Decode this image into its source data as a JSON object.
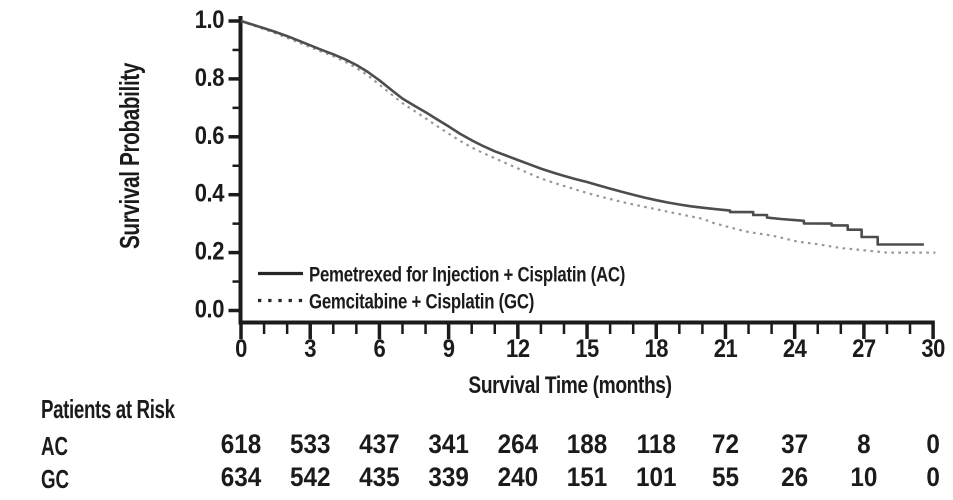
{
  "figure": {
    "ylabel": "Survival Probability",
    "xlabel": "Survival Time (months)",
    "y_ticks": [
      "1.0",
      "0.8",
      "0.6",
      "0.4",
      "0.2",
      "0.0"
    ],
    "x_ticks": [
      "0",
      "3",
      "6",
      "9",
      "12",
      "15",
      "18",
      "21",
      "24",
      "27",
      "30"
    ],
    "legend": [
      {
        "key": "ac",
        "label": "Pemetrexed for Injection + Cisplatin (AC)",
        "style": "solid"
      },
      {
        "key": "gc",
        "label": "Gemcitabine + Cisplatin (GC)",
        "style": "dotted"
      }
    ],
    "axis_color": "#1b1b1b",
    "legend_sample_color": "#262626"
  },
  "risk_table": {
    "title": "Patients at Risk",
    "rows": [
      {
        "label": "AC",
        "counts": [
          "618",
          "533",
          "437",
          "341",
          "264",
          "188",
          "118",
          "72",
          "37",
          "8",
          "0"
        ]
      },
      {
        "label": "GC",
        "counts": [
          "634",
          "542",
          "435",
          "339",
          "240",
          "151",
          "101",
          "55",
          "26",
          "10",
          "0"
        ]
      }
    ]
  },
  "chart_data": {
    "type": "line",
    "subtype": "kaplan-meier",
    "title": "",
    "xlabel": "Survival Time (months)",
    "ylabel": "Survival Probability",
    "xlim": [
      0,
      30
    ],
    "ylim": [
      0.0,
      1.0
    ],
    "x_tick_values": [
      0,
      3,
      6,
      9,
      12,
      15,
      18,
      21,
      24,
      27,
      30
    ],
    "x_minor_tick_step": 1,
    "y_tick_values": [
      0.0,
      0.2,
      0.4,
      0.6,
      0.8,
      1.0
    ],
    "y_minor_tick_values": [
      0.1,
      0.3,
      0.5,
      0.7,
      0.9
    ],
    "grid": false,
    "legend_position": "inside lower-left",
    "series": [
      {
        "name": "Pemetrexed for Injection + Cisplatin (AC)",
        "key": "ac",
        "style": "solid",
        "color": "#4d4d4d",
        "width": 2.6,
        "points": [
          [
            0,
            1.0
          ],
          [
            0.4,
            0.99
          ],
          [
            1,
            0.975
          ],
          [
            1.5,
            0.962
          ],
          [
            2,
            0.948
          ],
          [
            2.5,
            0.932
          ],
          [
            3,
            0.916
          ],
          [
            3.5,
            0.9
          ],
          [
            4,
            0.885
          ],
          [
            4.5,
            0.868
          ],
          [
            5,
            0.848
          ],
          [
            5.5,
            0.824
          ],
          [
            6,
            0.795
          ],
          [
            6.5,
            0.763
          ],
          [
            7,
            0.732
          ],
          [
            7.5,
            0.708
          ],
          [
            8,
            0.685
          ],
          [
            8.5,
            0.66
          ],
          [
            9,
            0.636
          ],
          [
            9.5,
            0.61
          ],
          [
            10,
            0.588
          ],
          [
            10.5,
            0.568
          ],
          [
            11,
            0.55
          ],
          [
            11.5,
            0.535
          ],
          [
            12,
            0.52
          ],
          [
            12.5,
            0.505
          ],
          [
            13,
            0.49
          ],
          [
            13.5,
            0.477
          ],
          [
            14,
            0.465
          ],
          [
            14.5,
            0.454
          ],
          [
            15,
            0.444
          ],
          [
            15.5,
            0.432
          ],
          [
            16,
            0.421
          ],
          [
            16.5,
            0.41
          ],
          [
            17,
            0.4
          ],
          [
            17.5,
            0.39
          ],
          [
            18,
            0.381
          ],
          [
            18.5,
            0.373
          ],
          [
            19,
            0.366
          ],
          [
            19.5,
            0.36
          ],
          [
            20,
            0.355
          ],
          [
            20.6,
            0.35
          ],
          [
            21.2,
            0.345
          ],
          [
            21.2,
            0.34
          ],
          [
            22.2,
            0.34
          ],
          [
            22.2,
            0.33
          ],
          [
            22.8,
            0.33
          ],
          [
            22.8,
            0.321
          ],
          [
            23.4,
            0.316
          ],
          [
            24.4,
            0.31
          ],
          [
            24.4,
            0.301
          ],
          [
            25.6,
            0.3
          ],
          [
            25.6,
            0.294
          ],
          [
            26.3,
            0.294
          ],
          [
            26.3,
            0.279
          ],
          [
            26.9,
            0.279
          ],
          [
            26.9,
            0.254
          ],
          [
            27.6,
            0.254
          ],
          [
            27.6,
            0.228
          ],
          [
            29.6,
            0.228
          ]
        ]
      },
      {
        "name": "Gemcitabine + Cisplatin (GC)",
        "key": "gc",
        "style": "dotted",
        "color": "#989898",
        "width": 2.2,
        "points": [
          [
            0,
            1.0
          ],
          [
            0.4,
            0.988
          ],
          [
            1,
            0.972
          ],
          [
            1.5,
            0.957
          ],
          [
            2,
            0.942
          ],
          [
            2.5,
            0.926
          ],
          [
            3,
            0.91
          ],
          [
            3.5,
            0.894
          ],
          [
            4,
            0.878
          ],
          [
            4.5,
            0.86
          ],
          [
            5,
            0.838
          ],
          [
            5.5,
            0.812
          ],
          [
            6,
            0.78
          ],
          [
            6.5,
            0.748
          ],
          [
            7,
            0.716
          ],
          [
            7.5,
            0.69
          ],
          [
            8,
            0.664
          ],
          [
            8.5,
            0.637
          ],
          [
            9,
            0.611
          ],
          [
            9.5,
            0.586
          ],
          [
            10,
            0.563
          ],
          [
            10.5,
            0.544
          ],
          [
            11,
            0.526
          ],
          [
            11.5,
            0.508
          ],
          [
            12,
            0.491
          ],
          [
            12.5,
            0.473
          ],
          [
            13,
            0.456
          ],
          [
            13.5,
            0.443
          ],
          [
            14,
            0.43
          ],
          [
            14.5,
            0.418
          ],
          [
            15,
            0.406
          ],
          [
            15.5,
            0.395
          ],
          [
            16,
            0.385
          ],
          [
            16.5,
            0.375
          ],
          [
            17,
            0.366
          ],
          [
            17.5,
            0.358
          ],
          [
            18,
            0.35
          ],
          [
            18.5,
            0.341
          ],
          [
            19,
            0.333
          ],
          [
            19.5,
            0.325
          ],
          [
            20,
            0.317
          ],
          [
            20.5,
            0.302
          ],
          [
            21,
            0.291
          ],
          [
            21.5,
            0.281
          ],
          [
            22,
            0.271
          ],
          [
            22.5,
            0.265
          ],
          [
            23,
            0.259
          ],
          [
            23.5,
            0.25
          ],
          [
            24,
            0.24
          ],
          [
            24.5,
            0.234
          ],
          [
            25,
            0.229
          ],
          [
            25.5,
            0.222
          ],
          [
            26,
            0.216
          ],
          [
            26.5,
            0.212
          ],
          [
            27,
            0.208
          ],
          [
            27.5,
            0.204
          ],
          [
            28,
            0.2
          ],
          [
            30.1,
            0.2
          ]
        ]
      }
    ],
    "patients_at_risk": {
      "months": [
        0,
        3,
        6,
        9,
        12,
        15,
        18,
        21,
        24,
        27,
        30
      ],
      "AC": [
        618,
        533,
        437,
        341,
        264,
        188,
        118,
        72,
        37,
        8,
        0
      ],
      "GC": [
        634,
        542,
        435,
        339,
        240,
        151,
        101,
        55,
        26,
        10,
        0
      ]
    }
  }
}
